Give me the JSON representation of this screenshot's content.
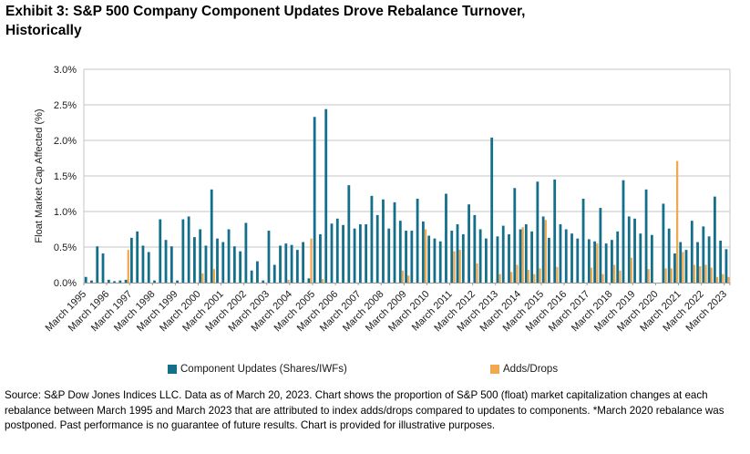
{
  "title": {
    "line1": "Exhibit 3: S&P 500 Company Component Updates Drove Rebalance Turnover,",
    "line2": "Historically"
  },
  "chart_data": {
    "type": "bar",
    "title": "Exhibit 3: S&P 500 Company Component Updates Drove Rebalance Turnover, Historically",
    "xlabel": "",
    "ylabel": "Float Market Cap Affected (%)",
    "ylim": [
      0,
      3.0
    ],
    "ytick_step": 0.5,
    "ytick_labels": [
      "0.0%",
      "0.5%",
      "1.0%",
      "1.5%",
      "2.0%",
      "2.5%",
      "3.0%"
    ],
    "grid": true,
    "legend_position": "bottom",
    "x_tick_labels": [
      "March 1995",
      "March 1996",
      "March 1997",
      "March 1998",
      "March 1999",
      "March 2000",
      "March 2001",
      "March 2002",
      "March 2003",
      "March 2004",
      "March 2005",
      "March 2006",
      "March 2007",
      "March 2008",
      "March 2009",
      "March 2010",
      "March 2011",
      "March 2012",
      "March 2013",
      "March 2014",
      "March 2015",
      "March 2016",
      "March 2017",
      "March 2018",
      "March 2019",
      "March 2020",
      "March 2021",
      "March 2022",
      "March 2023"
    ],
    "categories": [
      "Mar 1995",
      "Jun 1995",
      "Sep 1995",
      "Dec 1995",
      "Mar 1996",
      "Jun 1996",
      "Sep 1996",
      "Dec 1996",
      "Mar 1997",
      "Jun 1997",
      "Sep 1997",
      "Dec 1997",
      "Mar 1998",
      "Jun 1998",
      "Sep 1998",
      "Dec 1998",
      "Mar 1999",
      "Jun 1999",
      "Sep 1999",
      "Dec 1999",
      "Mar 2000",
      "Jun 2000",
      "Sep 2000",
      "Dec 2000",
      "Mar 2001",
      "Jun 2001",
      "Sep 2001",
      "Dec 2001",
      "Mar 2002",
      "Jun 2002",
      "Sep 2002",
      "Dec 2002",
      "Mar 2003",
      "Jun 2003",
      "Sep 2003",
      "Dec 2003",
      "Mar 2004",
      "Jun 2004",
      "Sep 2004",
      "Dec 2004",
      "Mar 2005",
      "Jun 2005",
      "Sep 2005",
      "Dec 2005",
      "Mar 2006",
      "Jun 2006",
      "Sep 2006",
      "Dec 2006",
      "Mar 2007",
      "Jun 2007",
      "Sep 2007",
      "Dec 2007",
      "Mar 2008",
      "Jun 2008",
      "Sep 2008",
      "Dec 2008",
      "Mar 2009",
      "Jun 2009",
      "Sep 2009",
      "Dec 2009",
      "Mar 2010",
      "Jun 2010",
      "Sep 2010",
      "Dec 2010",
      "Mar 2011",
      "Jun 2011",
      "Sep 2011",
      "Dec 2011",
      "Mar 2012",
      "Jun 2012",
      "Sep 2012",
      "Dec 2012",
      "Mar 2013",
      "Jun 2013",
      "Sep 2013",
      "Dec 2013",
      "Mar 2014",
      "Jun 2014",
      "Sep 2014",
      "Dec 2014",
      "Mar 2015",
      "Jun 2015",
      "Sep 2015",
      "Dec 2015",
      "Mar 2016",
      "Jun 2016",
      "Sep 2016",
      "Dec 2016",
      "Mar 2017",
      "Jun 2017",
      "Sep 2017",
      "Dec 2017",
      "Mar 2018",
      "Jun 2018",
      "Sep 2018",
      "Dec 2018",
      "Mar 2019",
      "Jun 2019",
      "Sep 2019",
      "Dec 2019",
      "Mar 2020",
      "Jun 2020",
      "Sep 2020",
      "Dec 2020",
      "Mar 2021",
      "Jun 2021",
      "Sep 2021",
      "Dec 2021",
      "Mar 2022",
      "Jun 2022",
      "Sep 2022",
      "Dec 2022",
      "Mar 2023"
    ],
    "series": [
      {
        "name": "Component Updates (Shares/IWFs)",
        "color": "#136F8A",
        "values": [
          0.08,
          0.03,
          0.51,
          0.41,
          0.04,
          0.02,
          0.03,
          0.04,
          0.63,
          0.72,
          0.52,
          0.43,
          0.03,
          0.89,
          0.6,
          0.51,
          0.03,
          0.89,
          0.93,
          0.64,
          0.75,
          0.52,
          1.31,
          0.62,
          0.57,
          0.75,
          0.51,
          0.44,
          0.84,
          0.17,
          0.3,
          0.03,
          0.73,
          0.25,
          0.52,
          0.55,
          0.53,
          0.46,
          0.57,
          0.06,
          2.33,
          0.68,
          2.44,
          0.83,
          0.9,
          0.81,
          1.37,
          0.76,
          0.82,
          0.82,
          1.22,
          0.95,
          1.17,
          0.76,
          1.13,
          0.87,
          0.73,
          0.73,
          1.18,
          0.86,
          0.66,
          0.62,
          0.58,
          1.25,
          0.73,
          0.82,
          0.68,
          1.1,
          0.95,
          0.75,
          0.62,
          2.04,
          0.65,
          0.8,
          0.68,
          1.33,
          0.75,
          0.82,
          0.72,
          1.42,
          0.93,
          0.63,
          1.45,
          0.82,
          0.75,
          0.69,
          0.62,
          1.18,
          0.61,
          0.58,
          1.05,
          0.55,
          0.6,
          0.72,
          1.44,
          0.93,
          0.9,
          0.69,
          1.31,
          0.67,
          0,
          1.11,
          0.76,
          0.41,
          0.57,
          0.46,
          0.87,
          0.57,
          0.79,
          0.65,
          1.21,
          0.59,
          0.47
        ]
      },
      {
        "name": "Adds/Drops",
        "color": "#F0A951",
        "values": [
          0,
          0,
          0,
          0,
          0,
          0,
          0,
          0.46,
          0,
          0,
          0,
          0,
          0,
          0,
          0,
          0,
          0,
          0,
          0,
          0,
          0.13,
          0,
          0.19,
          0,
          0,
          0,
          0,
          0,
          0,
          0,
          0,
          0,
          0,
          0,
          0,
          0.04,
          0,
          0,
          0,
          0.62,
          0,
          0.05,
          0,
          0,
          0,
          0,
          0,
          0,
          0,
          0,
          0,
          0,
          0,
          0,
          0,
          0.17,
          0.1,
          0,
          0,
          0.75,
          0,
          0,
          0,
          0,
          0.44,
          0.46,
          0,
          0,
          0.27,
          0,
          0,
          0,
          0.12,
          0,
          0.15,
          0.25,
          0.78,
          0.18,
          0.12,
          0.2,
          0.88,
          0,
          0.22,
          0,
          0,
          0,
          0,
          0,
          0.21,
          0.55,
          0.12,
          0,
          0.25,
          0.17,
          0,
          0.35,
          0,
          0,
          0.19,
          0,
          0,
          0.2,
          0.2,
          1.71,
          0.43,
          0,
          0.25,
          0.23,
          0.25,
          0.21,
          0.08,
          0.12,
          0.08
        ]
      }
    ]
  },
  "legend": {
    "items": [
      {
        "label": "Component Updates (Shares/IWFs)"
      },
      {
        "label": "Adds/Drops"
      }
    ]
  },
  "footer": {
    "text": "Source: S&P Dow Jones Indices LLC. Data as of March 20, 2023. Chart shows the proportion of S&P 500 (float) market capitalization changes at each rebalance between March 1995 and March 2023 that are attributed to index adds/drops compared to updates to components. *March 2020 rebalance was postponed. Past performance is no guarantee of future results. Chart is provided for illustrative purposes."
  }
}
